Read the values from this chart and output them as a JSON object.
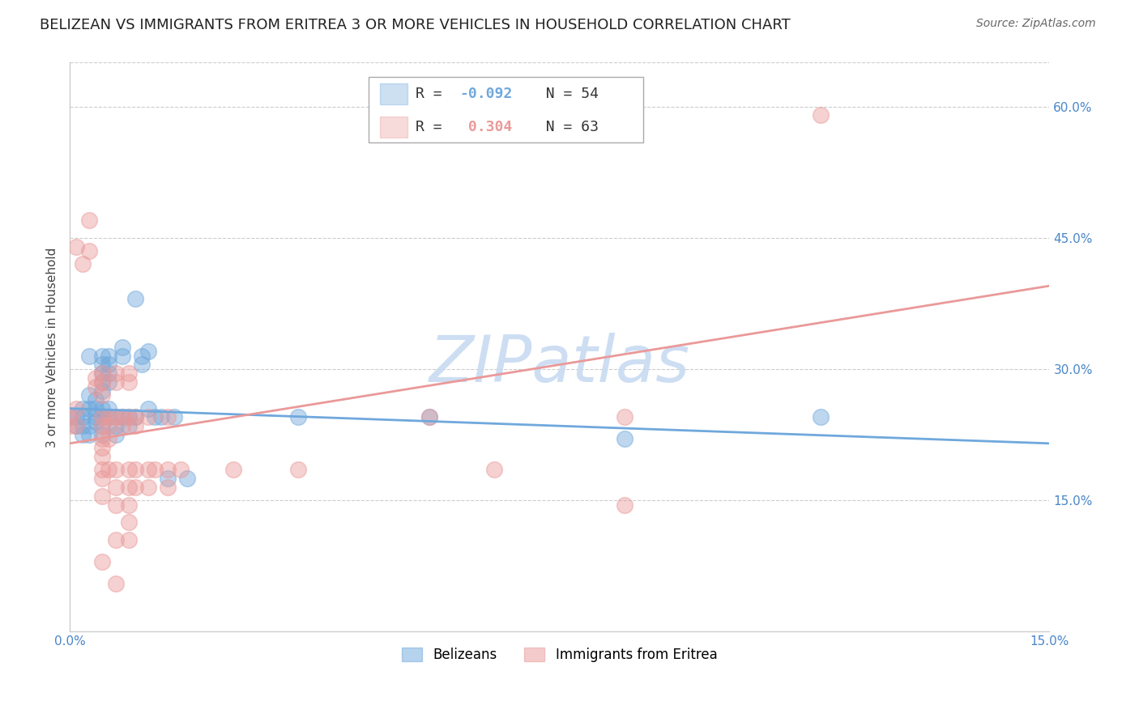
{
  "title": "BELIZEAN VS IMMIGRANTS FROM ERITREA 3 OR MORE VEHICLES IN HOUSEHOLD CORRELATION CHART",
  "source_text": "Source: ZipAtlas.com",
  "ylabel": "3 or more Vehicles in Household",
  "xlim": [
    0.0,
    0.15
  ],
  "ylim": [
    0.0,
    0.65
  ],
  "xtick_positions": [
    0.0,
    0.15
  ],
  "xtick_labels": [
    "0.0%",
    "15.0%"
  ],
  "yticks_right": [
    0.15,
    0.3,
    0.45,
    0.6
  ],
  "ytick_labels_right": [
    "15.0%",
    "30.0%",
    "45.0%",
    "60.0%"
  ],
  "legend_entries": [
    {
      "label_r": "R = ",
      "label_val": "-0.092",
      "label_n": "  N = ",
      "label_nval": "54"
    },
    {
      "label_r": "R =  ",
      "label_val": "0.304",
      "label_n": "  N = ",
      "label_nval": "63"
    }
  ],
  "legend_bottom": [
    {
      "label": "Belizeans",
      "color": "#6fa8dc"
    },
    {
      "label": "Immigrants from Eritrea",
      "color": "#ea9999"
    }
  ],
  "watermark": "ZIPatlas",
  "watermark_color": "#c5d9f1",
  "background_color": "#ffffff",
  "grid_color": "#cccccc",
  "axis_color": "#4a86c8",
  "blue_scatter": [
    [
      0.002,
      0.245
    ],
    [
      0.003,
      0.315
    ],
    [
      0.003,
      0.27
    ],
    [
      0.004,
      0.265
    ],
    [
      0.004,
      0.245
    ],
    [
      0.004,
      0.24
    ],
    [
      0.005,
      0.315
    ],
    [
      0.005,
      0.305
    ],
    [
      0.005,
      0.295
    ],
    [
      0.005,
      0.285
    ],
    [
      0.005,
      0.275
    ],
    [
      0.005,
      0.255
    ],
    [
      0.005,
      0.245
    ],
    [
      0.005,
      0.235
    ],
    [
      0.005,
      0.225
    ],
    [
      0.006,
      0.315
    ],
    [
      0.006,
      0.305
    ],
    [
      0.006,
      0.295
    ],
    [
      0.006,
      0.285
    ],
    [
      0.006,
      0.255
    ],
    [
      0.006,
      0.245
    ],
    [
      0.007,
      0.245
    ],
    [
      0.007,
      0.235
    ],
    [
      0.007,
      0.225
    ],
    [
      0.008,
      0.325
    ],
    [
      0.008,
      0.315
    ],
    [
      0.008,
      0.245
    ],
    [
      0.009,
      0.245
    ],
    [
      0.009,
      0.235
    ],
    [
      0.01,
      0.38
    ],
    [
      0.01,
      0.245
    ],
    [
      0.011,
      0.315
    ],
    [
      0.011,
      0.305
    ],
    [
      0.012,
      0.32
    ],
    [
      0.012,
      0.255
    ],
    [
      0.013,
      0.245
    ],
    [
      0.014,
      0.245
    ],
    [
      0.015,
      0.175
    ],
    [
      0.016,
      0.245
    ],
    [
      0.018,
      0.175
    ],
    [
      0.035,
      0.245
    ],
    [
      0.055,
      0.245
    ],
    [
      0.085,
      0.22
    ],
    [
      0.115,
      0.245
    ],
    [
      0.0,
      0.245
    ],
    [
      0.001,
      0.245
    ],
    [
      0.001,
      0.235
    ],
    [
      0.002,
      0.255
    ],
    [
      0.002,
      0.235
    ],
    [
      0.002,
      0.225
    ],
    [
      0.003,
      0.255
    ],
    [
      0.003,
      0.235
    ],
    [
      0.003,
      0.225
    ],
    [
      0.004,
      0.255
    ]
  ],
  "pink_scatter": [
    [
      0.001,
      0.44
    ],
    [
      0.002,
      0.42
    ],
    [
      0.003,
      0.47
    ],
    [
      0.003,
      0.435
    ],
    [
      0.004,
      0.29
    ],
    [
      0.004,
      0.28
    ],
    [
      0.005,
      0.295
    ],
    [
      0.005,
      0.285
    ],
    [
      0.005,
      0.27
    ],
    [
      0.005,
      0.245
    ],
    [
      0.005,
      0.235
    ],
    [
      0.005,
      0.22
    ],
    [
      0.005,
      0.21
    ],
    [
      0.005,
      0.2
    ],
    [
      0.005,
      0.185
    ],
    [
      0.005,
      0.175
    ],
    [
      0.005,
      0.155
    ],
    [
      0.005,
      0.08
    ],
    [
      0.006,
      0.245
    ],
    [
      0.006,
      0.235
    ],
    [
      0.006,
      0.22
    ],
    [
      0.006,
      0.185
    ],
    [
      0.007,
      0.295
    ],
    [
      0.007,
      0.285
    ],
    [
      0.007,
      0.245
    ],
    [
      0.007,
      0.185
    ],
    [
      0.007,
      0.165
    ],
    [
      0.007,
      0.145
    ],
    [
      0.007,
      0.105
    ],
    [
      0.007,
      0.055
    ],
    [
      0.008,
      0.245
    ],
    [
      0.008,
      0.235
    ],
    [
      0.009,
      0.295
    ],
    [
      0.009,
      0.285
    ],
    [
      0.009,
      0.245
    ],
    [
      0.009,
      0.185
    ],
    [
      0.009,
      0.165
    ],
    [
      0.009,
      0.145
    ],
    [
      0.009,
      0.125
    ],
    [
      0.009,
      0.105
    ],
    [
      0.01,
      0.245
    ],
    [
      0.01,
      0.235
    ],
    [
      0.01,
      0.185
    ],
    [
      0.01,
      0.165
    ],
    [
      0.012,
      0.245
    ],
    [
      0.012,
      0.185
    ],
    [
      0.012,
      0.165
    ],
    [
      0.013,
      0.185
    ],
    [
      0.015,
      0.245
    ],
    [
      0.015,
      0.185
    ],
    [
      0.015,
      0.165
    ],
    [
      0.017,
      0.185
    ],
    [
      0.025,
      0.185
    ],
    [
      0.035,
      0.185
    ],
    [
      0.055,
      0.245
    ],
    [
      0.065,
      0.185
    ],
    [
      0.085,
      0.245
    ],
    [
      0.085,
      0.145
    ],
    [
      0.115,
      0.59
    ],
    [
      0.0,
      0.245
    ],
    [
      0.0,
      0.235
    ],
    [
      0.001,
      0.255
    ],
    [
      0.001,
      0.235
    ]
  ],
  "blue_line_x": [
    0.0,
    0.15
  ],
  "blue_line_y": [
    0.255,
    0.215
  ],
  "pink_line_x": [
    0.0,
    0.15
  ],
  "pink_line_y": [
    0.215,
    0.395
  ],
  "blue_color": "#6fa8dc",
  "pink_color": "#ea9999",
  "title_fontsize": 13,
  "axis_label_fontsize": 11,
  "tick_fontsize": 11
}
